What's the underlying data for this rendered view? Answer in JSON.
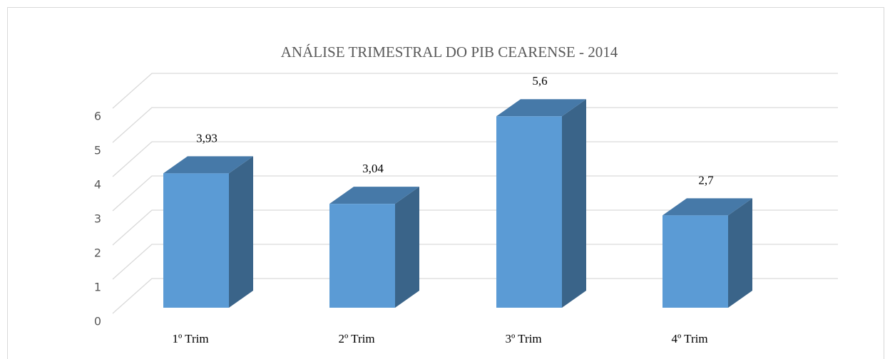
{
  "chart_data": {
    "type": "bar3d",
    "title": "ANÁLISE  TRIMESTRAL DO PIB CEARENSE - 2014",
    "categories": [
      "1º Trim",
      "2º Trim",
      "3º Trim",
      "4º Trim"
    ],
    "values": [
      3.93,
      3.04,
      5.6,
      2.7
    ],
    "value_labels": [
      "3,93",
      "3,04",
      "5,6",
      "2,7"
    ],
    "color": "#5b9bd5",
    "ylim": [
      0,
      6
    ],
    "yticks": [
      0,
      1,
      2,
      3,
      4,
      5,
      6
    ],
    "grid": true
  }
}
